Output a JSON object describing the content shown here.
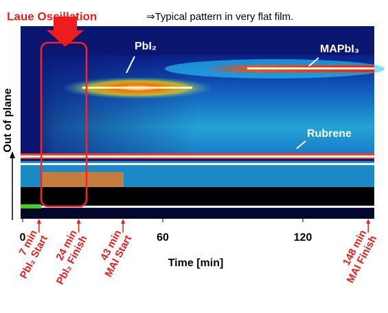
{
  "title": "Laue Oscillation",
  "note": "⇒Typical pattern in very flat film.",
  "y_axis_label": "Out of plane",
  "x_axis_label": "Time [min]",
  "xlim": [
    0,
    150
  ],
  "xticks": [
    0,
    60,
    120
  ],
  "peaks": [
    {
      "label": "PbI₂"
    },
    {
      "label": "MAPbI₃"
    },
    {
      "label": "Rubrene"
    }
  ],
  "events": [
    {
      "time": 7,
      "label": "7 min",
      "name": "PbI₂ Start"
    },
    {
      "time": 24,
      "label": "24 min",
      "name": "PbI₂ Finish"
    },
    {
      "time": 43,
      "label": "43 min",
      "name": "MAI Start"
    },
    {
      "time": 148,
      "label": "148 min",
      "name": "MAI Finish"
    }
  ]
}
